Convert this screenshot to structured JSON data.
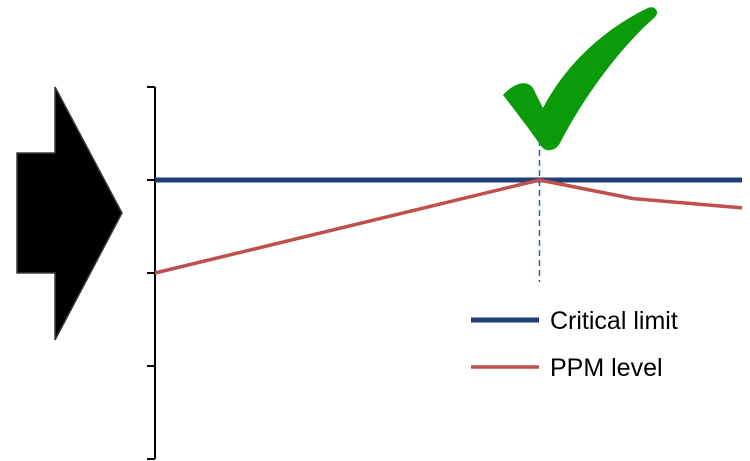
{
  "chart_data": {
    "type": "line",
    "title": "",
    "xlabel": "",
    "ylabel": "",
    "xlim": [
      0,
      100
    ],
    "ylim": [
      0,
      4
    ],
    "y_ticks": [
      0,
      1,
      2,
      3,
      4
    ],
    "tick_labels_shown": false,
    "grid": false,
    "legend_position": "bottom-right",
    "marker_x": 65.5,
    "series": [
      {
        "name": "Critical limit",
        "color": "#1f3f7a",
        "x": [
          0,
          100
        ],
        "y": [
          3,
          3
        ]
      },
      {
        "name": "PPM level",
        "color": "#c0504d",
        "x": [
          0,
          65.5,
          81.5,
          100
        ],
        "y": [
          2,
          3,
          2.8,
          2.7
        ]
      }
    ]
  },
  "decor": {
    "arrow_color": "#000000",
    "check_color": "#0a9a0a",
    "marker_line_color": "#2e5fa0",
    "arrow_icon": "right-arrow-icon",
    "check_icon": "checkmark-icon"
  }
}
